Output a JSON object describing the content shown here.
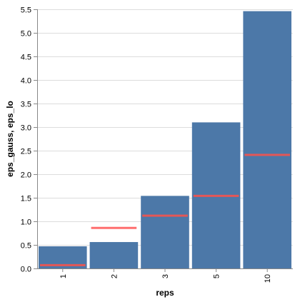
{
  "chart_data": {
    "type": "bar",
    "categories": [
      "1",
      "2",
      "3",
      "5",
      "10"
    ],
    "series": [
      {
        "name": "eps_gauss",
        "mark": "bar",
        "values": [
          0.47,
          0.56,
          1.54,
          3.1,
          5.46
        ]
      },
      {
        "name": "eps_lo",
        "mark": "tick",
        "values": [
          0.07,
          0.86,
          1.12,
          1.54,
          2.41
        ]
      }
    ],
    "xlabel": "reps",
    "ylabel": "eps_gauss, eps_lo",
    "ylim": [
      0,
      5.5
    ],
    "yticks": [
      "0.0",
      "0.5",
      "1.0",
      "1.5",
      "2.0",
      "2.5",
      "3.0",
      "3.5",
      "4.0",
      "4.5",
      "5.0",
      "5.5"
    ],
    "grid": true,
    "legend": "none",
    "colors": {
      "bar": "#4c78a8",
      "tick": "#e45756",
      "tick_no_bar": "#ff6e6e",
      "grid": "#dddddd",
      "axis": "#888888"
    }
  }
}
